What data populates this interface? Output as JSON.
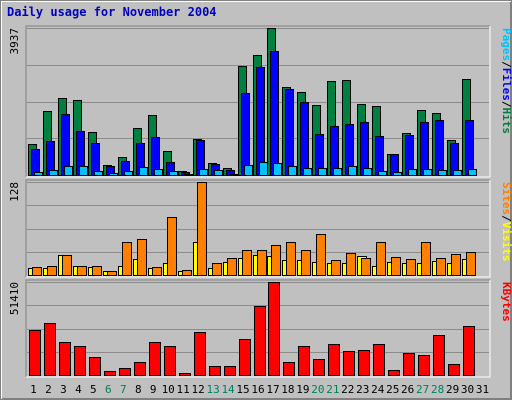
{
  "title": "Daily usage for November 2004",
  "colors": {
    "hits": "#008040",
    "files": "#0000ff",
    "pages": "#00c0ff",
    "visits": "#ffff00",
    "sites": "#ff8000",
    "kbytes": "#ff0000",
    "weekday_label": "#000000",
    "weekend_label": "#00805c",
    "title": "#0000c0"
  },
  "chart_data": [
    {
      "type": "bar",
      "panel": "hits-files-pages",
      "ymax_label": "3937",
      "ylim": [
        0,
        3937
      ],
      "grid": true,
      "legend": [
        "Pages",
        "/",
        "Files",
        "/",
        "Hits"
      ],
      "categories": [
        "1",
        "2",
        "3",
        "4",
        "5",
        "6",
        "7",
        "8",
        "9",
        "10",
        "11",
        "12",
        "13",
        "14",
        "15",
        "16",
        "17",
        "18",
        "19",
        "20",
        "21",
        "22",
        "23",
        "24",
        "25",
        "26",
        "27",
        "28",
        "29",
        "30",
        "31"
      ],
      "series": [
        {
          "name": "Hits",
          "values": [
            820,
            1720,
            2060,
            2000,
            1160,
            260,
            470,
            1250,
            1620,
            640,
            100,
            960,
            330,
            180,
            2930,
            3210,
            3937,
            2350,
            2210,
            1870,
            2530,
            2540,
            1900,
            1860,
            570,
            1120,
            1750,
            1670,
            930,
            2580,
            0
          ]
        },
        {
          "name": "Files",
          "values": [
            690,
            900,
            1640,
            1190,
            860,
            240,
            380,
            850,
            1010,
            340,
            80,
            940,
            300,
            140,
            2200,
            2880,
            3330,
            2300,
            1950,
            1090,
            1300,
            1360,
            1410,
            1050,
            560,
            1060,
            1410,
            1470,
            870,
            1470,
            0
          ]
        },
        {
          "name": "Pages",
          "values": [
            80,
            140,
            250,
            230,
            110,
            60,
            120,
            210,
            150,
            110,
            20,
            160,
            130,
            40,
            280,
            360,
            310,
            240,
            180,
            180,
            200,
            230,
            180,
            120,
            80,
            150,
            150,
            130,
            140,
            170,
            0
          ]
        }
      ]
    },
    {
      "type": "bar",
      "panel": "visits-sites",
      "ymax_label": "128",
      "ylim": [
        0,
        128
      ],
      "grid": true,
      "legend": [
        "Sites",
        "/",
        "Visits"
      ],
      "categories": [
        "1",
        "2",
        "3",
        "4",
        "5",
        "6",
        "7",
        "8",
        "9",
        "10",
        "11",
        "12",
        "13",
        "14",
        "15",
        "16",
        "17",
        "18",
        "19",
        "20",
        "21",
        "22",
        "23",
        "24",
        "25",
        "26",
        "27",
        "28",
        "29",
        "30",
        "31"
      ],
      "series": [
        {
          "name": "Visits",
          "values": [
            10,
            10,
            28,
            13,
            11,
            5,
            12,
            22,
            10,
            17,
            6,
            45,
            10,
            18,
            24,
            28,
            26,
            21,
            21,
            18,
            17,
            16,
            26,
            13,
            18,
            17,
            16,
            19,
            17,
            22,
            0
          ]
        },
        {
          "name": "Sites",
          "values": [
            11,
            12,
            27,
            13,
            12,
            6,
            45,
            50,
            11,
            80,
            7,
            128,
            16,
            24,
            34,
            35,
            41,
            46,
            34,
            57,
            20,
            30,
            23,
            46,
            25,
            22,
            46,
            23,
            29,
            32,
            0
          ]
        }
      ]
    },
    {
      "type": "bar",
      "panel": "kbytes",
      "ymax_label": "51410",
      "ylim": [
        0,
        51410
      ],
      "grid": true,
      "legend": [
        "KBytes"
      ],
      "categories": [
        "1",
        "2",
        "3",
        "4",
        "5",
        "6",
        "7",
        "8",
        "9",
        "10",
        "11",
        "12",
        "13",
        "14",
        "15",
        "16",
        "17",
        "18",
        "19",
        "20",
        "21",
        "22",
        "23",
        "24",
        "25",
        "26",
        "27",
        "28",
        "29",
        "30",
        "31"
      ],
      "series": [
        {
          "name": "KBytes",
          "values": [
            25000,
            29000,
            18000,
            16000,
            10000,
            2000,
            4000,
            7000,
            18000,
            16000,
            1000,
            24000,
            5000,
            5000,
            20000,
            38000,
            51410,
            7000,
            16000,
            9000,
            17000,
            13000,
            14000,
            17000,
            3000,
            12000,
            11000,
            22000,
            6000,
            27000,
            0
          ]
        }
      ]
    }
  ],
  "x_labels": [
    {
      "label": "1",
      "weekend": false
    },
    {
      "label": "2",
      "weekend": false
    },
    {
      "label": "3",
      "weekend": false
    },
    {
      "label": "4",
      "weekend": false
    },
    {
      "label": "5",
      "weekend": false
    },
    {
      "label": "6",
      "weekend": true
    },
    {
      "label": "7",
      "weekend": true
    },
    {
      "label": "8",
      "weekend": false
    },
    {
      "label": "9",
      "weekend": false
    },
    {
      "label": "10",
      "weekend": false
    },
    {
      "label": "11",
      "weekend": false
    },
    {
      "label": "12",
      "weekend": false
    },
    {
      "label": "13",
      "weekend": true
    },
    {
      "label": "14",
      "weekend": true
    },
    {
      "label": "15",
      "weekend": false
    },
    {
      "label": "16",
      "weekend": false
    },
    {
      "label": "17",
      "weekend": false
    },
    {
      "label": "18",
      "weekend": false
    },
    {
      "label": "19",
      "weekend": false
    },
    {
      "label": "20",
      "weekend": true
    },
    {
      "label": "21",
      "weekend": true
    },
    {
      "label": "22",
      "weekend": false
    },
    {
      "label": "23",
      "weekend": false
    },
    {
      "label": "24",
      "weekend": false
    },
    {
      "label": "25",
      "weekend": false
    },
    {
      "label": "26",
      "weekend": false
    },
    {
      "label": "27",
      "weekend": true
    },
    {
      "label": "28",
      "weekend": true
    },
    {
      "label": "29",
      "weekend": false
    },
    {
      "label": "30",
      "weekend": false
    },
    {
      "label": "31",
      "weekend": false
    }
  ]
}
